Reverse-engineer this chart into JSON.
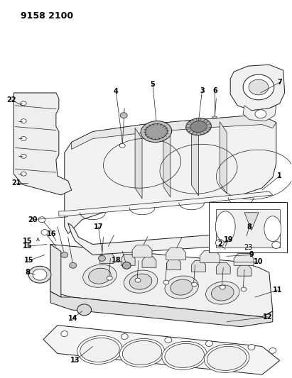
{
  "title_code": "9158 2100",
  "bg_color": "#ffffff",
  "line_color": "#000000",
  "title_fontsize": 9,
  "label_fontsize": 7,
  "fig_width": 4.11,
  "fig_height": 5.33,
  "dpi": 100
}
